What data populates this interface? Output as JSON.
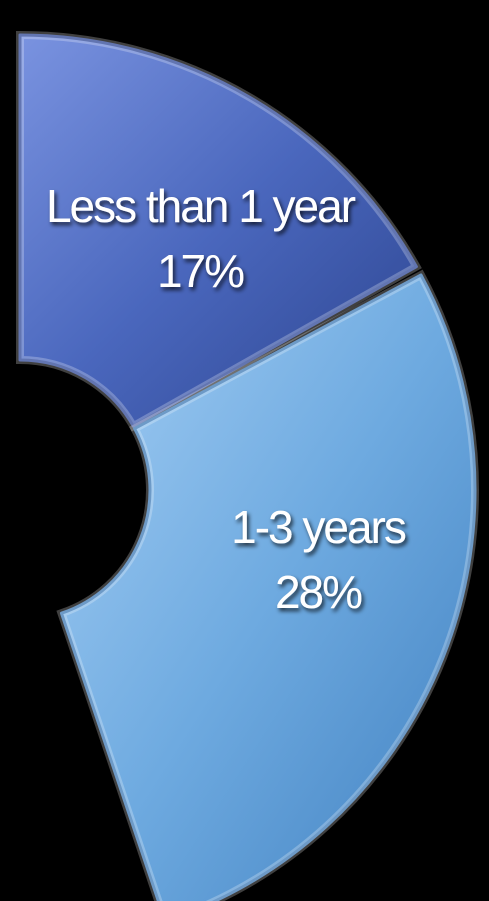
{
  "chart_data": {
    "type": "pie",
    "style": "doughnut",
    "grid": false,
    "legend": "none",
    "slices": [
      {
        "label": "Less than 1 year",
        "value_label": "17%",
        "value": 17,
        "color": "#4a67bd"
      },
      {
        "label": "1-3 years",
        "value_label": "28%",
        "value": 28,
        "color": "#6eaae0"
      }
    ]
  }
}
